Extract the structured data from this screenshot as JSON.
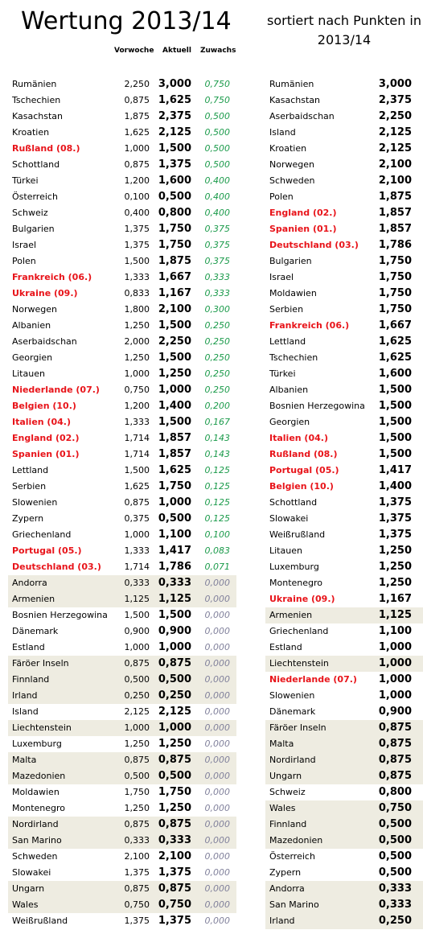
{
  "title": "Wertung 2013/14",
  "subtitle": "sortiert nach Punkten in 2013/14",
  "headers": {
    "vorwoche": "Vorwoche",
    "aktuell": "Aktuell",
    "zuwachs": "Zuwachs"
  },
  "left_rows": [
    {
      "name": "Rumänien",
      "vorwoche": "2,250",
      "aktuell": "3,000",
      "zuwachs": "0,750",
      "red": false,
      "hl": false
    },
    {
      "name": "Tschechien",
      "vorwoche": "0,875",
      "aktuell": "1,625",
      "zuwachs": "0,750",
      "red": false,
      "hl": false
    },
    {
      "name": "Kasachstan",
      "vorwoche": "1,875",
      "aktuell": "2,375",
      "zuwachs": "0,500",
      "red": false,
      "hl": false
    },
    {
      "name": "Kroatien",
      "vorwoche": "1,625",
      "aktuell": "2,125",
      "zuwachs": "0,500",
      "red": false,
      "hl": false
    },
    {
      "name": "Rußland (08.)",
      "vorwoche": "1,000",
      "aktuell": "1,500",
      "zuwachs": "0,500",
      "red": true,
      "hl": false
    },
    {
      "name": "Schottland",
      "vorwoche": "0,875",
      "aktuell": "1,375",
      "zuwachs": "0,500",
      "red": false,
      "hl": false
    },
    {
      "name": "Türkei",
      "vorwoche": "1,200",
      "aktuell": "1,600",
      "zuwachs": "0,400",
      "red": false,
      "hl": false
    },
    {
      "name": "Österreich",
      "vorwoche": "0,100",
      "aktuell": "0,500",
      "zuwachs": "0,400",
      "red": false,
      "hl": false
    },
    {
      "name": "Schweiz",
      "vorwoche": "0,400",
      "aktuell": "0,800",
      "zuwachs": "0,400",
      "red": false,
      "hl": false
    },
    {
      "name": "Bulgarien",
      "vorwoche": "1,375",
      "aktuell": "1,750",
      "zuwachs": "0,375",
      "red": false,
      "hl": false
    },
    {
      "name": "Israel",
      "vorwoche": "1,375",
      "aktuell": "1,750",
      "zuwachs": "0,375",
      "red": false,
      "hl": false
    },
    {
      "name": "Polen",
      "vorwoche": "1,500",
      "aktuell": "1,875",
      "zuwachs": "0,375",
      "red": false,
      "hl": false
    },
    {
      "name": "Frankreich (06.)",
      "vorwoche": "1,333",
      "aktuell": "1,667",
      "zuwachs": "0,333",
      "red": true,
      "hl": false
    },
    {
      "name": "Ukraine (09.)",
      "vorwoche": "0,833",
      "aktuell": "1,167",
      "zuwachs": "0,333",
      "red": true,
      "hl": false
    },
    {
      "name": "Norwegen",
      "vorwoche": "1,800",
      "aktuell": "2,100",
      "zuwachs": "0,300",
      "red": false,
      "hl": false
    },
    {
      "name": "Albanien",
      "vorwoche": "1,250",
      "aktuell": "1,500",
      "zuwachs": "0,250",
      "red": false,
      "hl": false
    },
    {
      "name": "Aserbaidschan",
      "vorwoche": "2,000",
      "aktuell": "2,250",
      "zuwachs": "0,250",
      "red": false,
      "hl": false
    },
    {
      "name": "Georgien",
      "vorwoche": "1,250",
      "aktuell": "1,500",
      "zuwachs": "0,250",
      "red": false,
      "hl": false
    },
    {
      "name": "Litauen",
      "vorwoche": "1,000",
      "aktuell": "1,250",
      "zuwachs": "0,250",
      "red": false,
      "hl": false
    },
    {
      "name": "Niederlande (07.)",
      "vorwoche": "0,750",
      "aktuell": "1,000",
      "zuwachs": "0,250",
      "red": true,
      "hl": false
    },
    {
      "name": "Belgien (10.)",
      "vorwoche": "1,200",
      "aktuell": "1,400",
      "zuwachs": "0,200",
      "red": true,
      "hl": false
    },
    {
      "name": "Italien (04.)",
      "vorwoche": "1,333",
      "aktuell": "1,500",
      "zuwachs": "0,167",
      "red": true,
      "hl": false
    },
    {
      "name": "England (02.)",
      "vorwoche": "1,714",
      "aktuell": "1,857",
      "zuwachs": "0,143",
      "red": true,
      "hl": false
    },
    {
      "name": "Spanien (01.)",
      "vorwoche": "1,714",
      "aktuell": "1,857",
      "zuwachs": "0,143",
      "red": true,
      "hl": false
    },
    {
      "name": "Lettland",
      "vorwoche": "1,500",
      "aktuell": "1,625",
      "zuwachs": "0,125",
      "red": false,
      "hl": false
    },
    {
      "name": "Serbien",
      "vorwoche": "1,625",
      "aktuell": "1,750",
      "zuwachs": "0,125",
      "red": false,
      "hl": false
    },
    {
      "name": "Slowenien",
      "vorwoche": "0,875",
      "aktuell": "1,000",
      "zuwachs": "0,125",
      "red": false,
      "hl": false
    },
    {
      "name": "Zypern",
      "vorwoche": "0,375",
      "aktuell": "0,500",
      "zuwachs": "0,125",
      "red": false,
      "hl": false
    },
    {
      "name": "Griechenland",
      "vorwoche": "1,000",
      "aktuell": "1,100",
      "zuwachs": "0,100",
      "red": false,
      "hl": false
    },
    {
      "name": "Portugal (05.)",
      "vorwoche": "1,333",
      "aktuell": "1,417",
      "zuwachs": "0,083",
      "red": true,
      "hl": false
    },
    {
      "name": "Deutschland (03.)",
      "vorwoche": "1,714",
      "aktuell": "1,786",
      "zuwachs": "0,071",
      "red": true,
      "hl": false
    },
    {
      "name": "Andorra",
      "vorwoche": "0,333",
      "aktuell": "0,333",
      "zuwachs": "0,000",
      "red": false,
      "hl": true
    },
    {
      "name": "Armenien",
      "vorwoche": "1,125",
      "aktuell": "1,125",
      "zuwachs": "0,000",
      "red": false,
      "hl": true
    },
    {
      "name": "Bosnien Herzegowina",
      "vorwoche": "1,500",
      "aktuell": "1,500",
      "zuwachs": "0,000",
      "red": false,
      "hl": false
    },
    {
      "name": "Dänemark",
      "vorwoche": "0,900",
      "aktuell": "0,900",
      "zuwachs": "0,000",
      "red": false,
      "hl": false
    },
    {
      "name": "Estland",
      "vorwoche": "1,000",
      "aktuell": "1,000",
      "zuwachs": "0,000",
      "red": false,
      "hl": false
    },
    {
      "name": "Färöer Inseln",
      "vorwoche": "0,875",
      "aktuell": "0,875",
      "zuwachs": "0,000",
      "red": false,
      "hl": true
    },
    {
      "name": "Finnland",
      "vorwoche": "0,500",
      "aktuell": "0,500",
      "zuwachs": "0,000",
      "red": false,
      "hl": true
    },
    {
      "name": "Irland",
      "vorwoche": "0,250",
      "aktuell": "0,250",
      "zuwachs": "0,000",
      "red": false,
      "hl": true
    },
    {
      "name": "Island",
      "vorwoche": "2,125",
      "aktuell": "2,125",
      "zuwachs": "0,000",
      "red": false,
      "hl": false
    },
    {
      "name": "Liechtenstein",
      "vorwoche": "1,000",
      "aktuell": "1,000",
      "zuwachs": "0,000",
      "red": false,
      "hl": true
    },
    {
      "name": "Luxemburg",
      "vorwoche": "1,250",
      "aktuell": "1,250",
      "zuwachs": "0,000",
      "red": false,
      "hl": false
    },
    {
      "name": "Malta",
      "vorwoche": "0,875",
      "aktuell": "0,875",
      "zuwachs": "0,000",
      "red": false,
      "hl": true
    },
    {
      "name": "Mazedonien",
      "vorwoche": "0,500",
      "aktuell": "0,500",
      "zuwachs": "0,000",
      "red": false,
      "hl": true
    },
    {
      "name": "Moldawien",
      "vorwoche": "1,750",
      "aktuell": "1,750",
      "zuwachs": "0,000",
      "red": false,
      "hl": false
    },
    {
      "name": "Montenegro",
      "vorwoche": "1,250",
      "aktuell": "1,250",
      "zuwachs": "0,000",
      "red": false,
      "hl": false
    },
    {
      "name": "Nordirland",
      "vorwoche": "0,875",
      "aktuell": "0,875",
      "zuwachs": "0,000",
      "red": false,
      "hl": true
    },
    {
      "name": "San Marino",
      "vorwoche": "0,333",
      "aktuell": "0,333",
      "zuwachs": "0,000",
      "red": false,
      "hl": true
    },
    {
      "name": "Schweden",
      "vorwoche": "2,100",
      "aktuell": "2,100",
      "zuwachs": "0,000",
      "red": false,
      "hl": false
    },
    {
      "name": "Slowakei",
      "vorwoche": "1,375",
      "aktuell": "1,375",
      "zuwachs": "0,000",
      "red": false,
      "hl": false
    },
    {
      "name": "Ungarn",
      "vorwoche": "0,875",
      "aktuell": "0,875",
      "zuwachs": "0,000",
      "red": false,
      "hl": true
    },
    {
      "name": "Wales",
      "vorwoche": "0,750",
      "aktuell": "0,750",
      "zuwachs": "0,000",
      "red": false,
      "hl": true
    },
    {
      "name": "Weißrußland",
      "vorwoche": "1,375",
      "aktuell": "1,375",
      "zuwachs": "0,000",
      "red": false,
      "hl": false
    }
  ],
  "right_rows": [
    {
      "name": "Rumänien",
      "punkte": "3,000",
      "red": false,
      "hl": false
    },
    {
      "name": "Kasachstan",
      "punkte": "2,375",
      "red": false,
      "hl": false
    },
    {
      "name": "Aserbaidschan",
      "punkte": "2,250",
      "red": false,
      "hl": false
    },
    {
      "name": "Island",
      "punkte": "2,125",
      "red": false,
      "hl": false
    },
    {
      "name": "Kroatien",
      "punkte": "2,125",
      "red": false,
      "hl": false
    },
    {
      "name": "Norwegen",
      "punkte": "2,100",
      "red": false,
      "hl": false
    },
    {
      "name": "Schweden",
      "punkte": "2,100",
      "red": false,
      "hl": false
    },
    {
      "name": "Polen",
      "punkte": "1,875",
      "red": false,
      "hl": false
    },
    {
      "name": "England (02.)",
      "punkte": "1,857",
      "red": true,
      "hl": false
    },
    {
      "name": "Spanien (01.)",
      "punkte": "1,857",
      "red": true,
      "hl": false
    },
    {
      "name": "Deutschland (03.)",
      "punkte": "1,786",
      "red": true,
      "hl": false
    },
    {
      "name": "Bulgarien",
      "punkte": "1,750",
      "red": false,
      "hl": false
    },
    {
      "name": "Israel",
      "punkte": "1,750",
      "red": false,
      "hl": false
    },
    {
      "name": "Moldawien",
      "punkte": "1,750",
      "red": false,
      "hl": false
    },
    {
      "name": "Serbien",
      "punkte": "1,750",
      "red": false,
      "hl": false
    },
    {
      "name": "Frankreich (06.)",
      "punkte": "1,667",
      "red": true,
      "hl": false
    },
    {
      "name": "Lettland",
      "punkte": "1,625",
      "red": false,
      "hl": false
    },
    {
      "name": "Tschechien",
      "punkte": "1,625",
      "red": false,
      "hl": false
    },
    {
      "name": "Türkei",
      "punkte": "1,600",
      "red": false,
      "hl": false
    },
    {
      "name": "Albanien",
      "punkte": "1,500",
      "red": false,
      "hl": false
    },
    {
      "name": "Bosnien Herzegowina",
      "punkte": "1,500",
      "red": false,
      "hl": false
    },
    {
      "name": "Georgien",
      "punkte": "1,500",
      "red": false,
      "hl": false
    },
    {
      "name": "Italien (04.)",
      "punkte": "1,500",
      "red": true,
      "hl": false
    },
    {
      "name": "Rußland (08.)",
      "punkte": "1,500",
      "red": true,
      "hl": false
    },
    {
      "name": "Portugal (05.)",
      "punkte": "1,417",
      "red": true,
      "hl": false
    },
    {
      "name": "Belgien (10.)",
      "punkte": "1,400",
      "red": true,
      "hl": false
    },
    {
      "name": "Schottland",
      "punkte": "1,375",
      "red": false,
      "hl": false
    },
    {
      "name": "Slowakei",
      "punkte": "1,375",
      "red": false,
      "hl": false
    },
    {
      "name": "Weißrußland",
      "punkte": "1,375",
      "red": false,
      "hl": false
    },
    {
      "name": "Litauen",
      "punkte": "1,250",
      "red": false,
      "hl": false
    },
    {
      "name": "Luxemburg",
      "punkte": "1,250",
      "red": false,
      "hl": false
    },
    {
      "name": "Montenegro",
      "punkte": "1,250",
      "red": false,
      "hl": false
    },
    {
      "name": "Ukraine (09.)",
      "punkte": "1,167",
      "red": true,
      "hl": false
    },
    {
      "name": "Armenien",
      "punkte": "1,125",
      "red": false,
      "hl": true
    },
    {
      "name": "Griechenland",
      "punkte": "1,100",
      "red": false,
      "hl": false
    },
    {
      "name": "Estland",
      "punkte": "1,000",
      "red": false,
      "hl": false
    },
    {
      "name": "Liechtenstein",
      "punkte": "1,000",
      "red": false,
      "hl": true
    },
    {
      "name": "Niederlande (07.)",
      "punkte": "1,000",
      "red": true,
      "hl": false
    },
    {
      "name": "Slowenien",
      "punkte": "1,000",
      "red": false,
      "hl": false
    },
    {
      "name": "Dänemark",
      "punkte": "0,900",
      "red": false,
      "hl": false
    },
    {
      "name": "Färöer Inseln",
      "punkte": "0,875",
      "red": false,
      "hl": true
    },
    {
      "name": "Malta",
      "punkte": "0,875",
      "red": false,
      "hl": true
    },
    {
      "name": "Nordirland",
      "punkte": "0,875",
      "red": false,
      "hl": true
    },
    {
      "name": "Ungarn",
      "punkte": "0,875",
      "red": false,
      "hl": true
    },
    {
      "name": "Schweiz",
      "punkte": "0,800",
      "red": false,
      "hl": false
    },
    {
      "name": "Wales",
      "punkte": "0,750",
      "red": false,
      "hl": true
    },
    {
      "name": "Finnland",
      "punkte": "0,500",
      "red": false,
      "hl": true
    },
    {
      "name": "Mazedonien",
      "punkte": "0,500",
      "red": false,
      "hl": true
    },
    {
      "name": "Österreich",
      "punkte": "0,500",
      "red": false,
      "hl": false
    },
    {
      "name": "Zypern",
      "punkte": "0,500",
      "red": false,
      "hl": false
    },
    {
      "name": "Andorra",
      "punkte": "0,333",
      "red": false,
      "hl": true
    },
    {
      "name": "San Marino",
      "punkte": "0,333",
      "red": false,
      "hl": true
    },
    {
      "name": "Irland",
      "punkte": "0,250",
      "red": false,
      "hl": true
    }
  ]
}
